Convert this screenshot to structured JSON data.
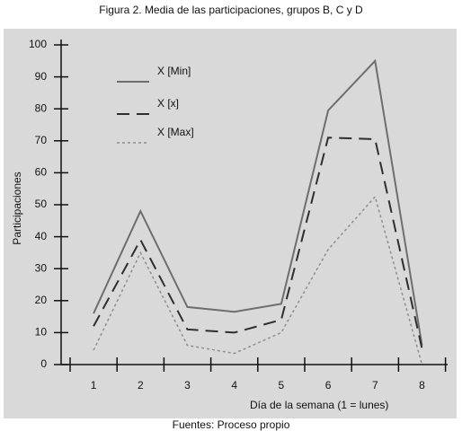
{
  "chart_data": {
    "type": "line",
    "title": "Figura 2. Media de las participaciones, grupos B, C y D",
    "footer": "Fuentes: Proceso propio",
    "x_label": "Día de la semana (1 = lunes)",
    "y_label": "Participaciones",
    "categories": [
      "1",
      "2",
      "3",
      "4",
      "5",
      "6",
      "7",
      "8"
    ],
    "series": [
      {
        "name": "X [Min]",
        "color": "#6e6e6e",
        "dash": "solid",
        "values": [
          16,
          48,
          18,
          16.5,
          19,
          79.5,
          95,
          6
        ]
      },
      {
        "name": "X [x]",
        "color": "#2e2e2e",
        "dash": "dashed",
        "values": [
          12,
          39,
          11,
          10,
          14,
          71,
          70.5,
          5
        ]
      },
      {
        "name": "X [Max]",
        "color": "#8e8e8e",
        "dash": "dotted",
        "values": [
          4.5,
          35,
          6,
          3.5,
          10,
          36,
          52.5,
          0
        ]
      }
    ],
    "ylim": [
      0,
      100
    ],
    "yticks": [
      0,
      10,
      20,
      30,
      40,
      50,
      60,
      70,
      80,
      90,
      100
    ]
  }
}
